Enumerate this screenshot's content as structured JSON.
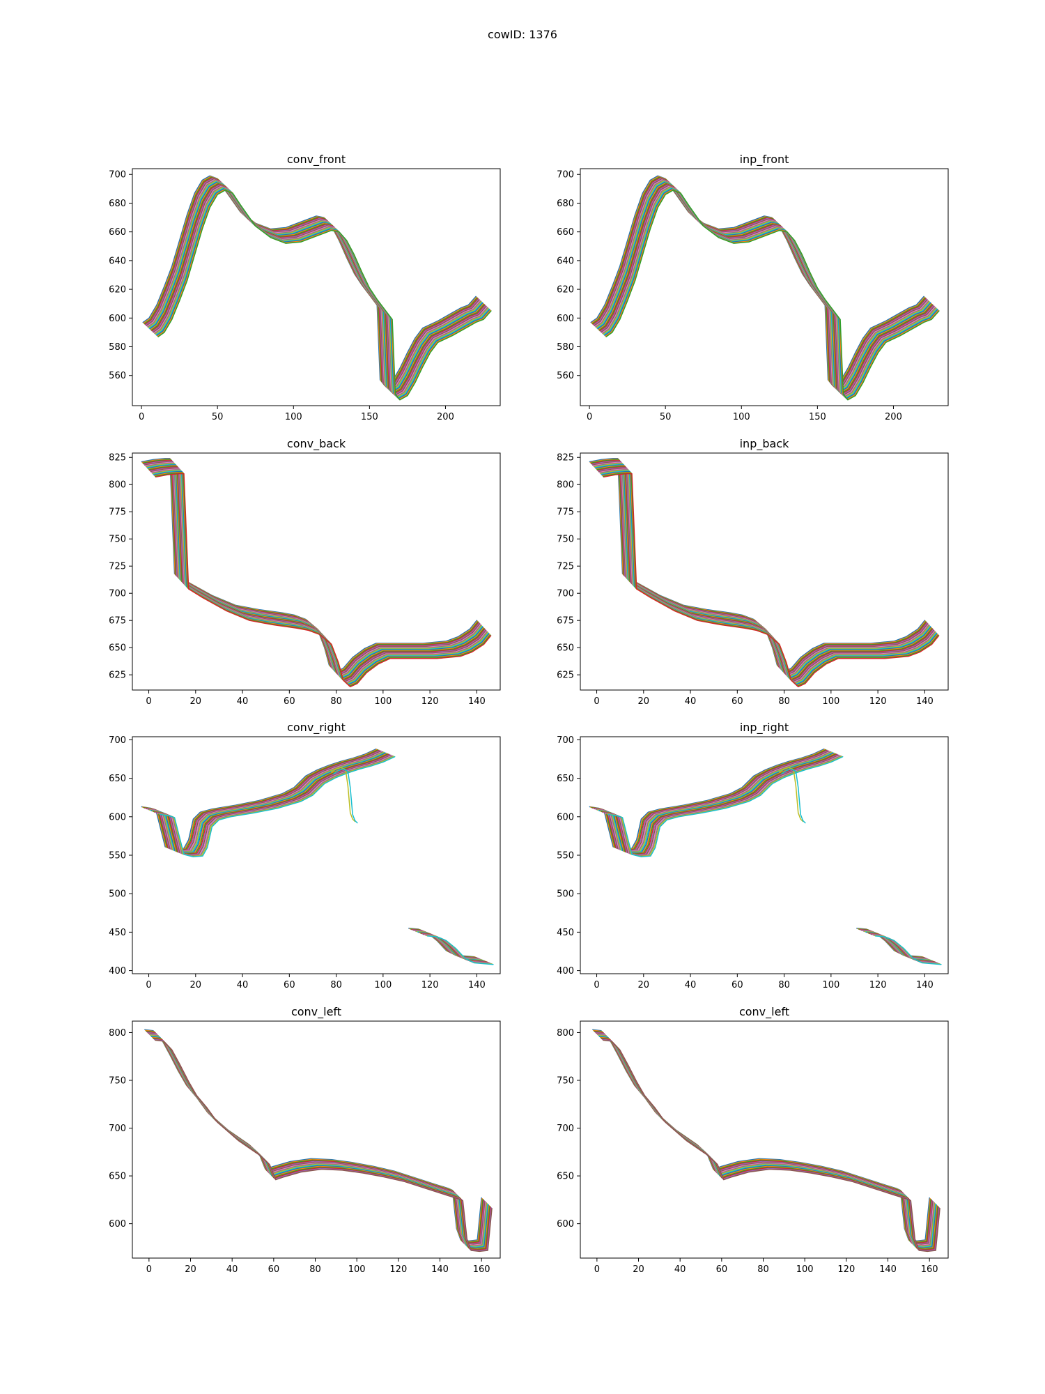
{
  "figure": {
    "title": "cowID: 1376"
  },
  "palette": [
    "#1f77b4",
    "#ff7f0e",
    "#2ca02c",
    "#d62728",
    "#9467bd",
    "#8c564b",
    "#e377c2",
    "#7f7f7f",
    "#bcbd22",
    "#17becf"
  ],
  "chart_data": [
    {
      "type": "line",
      "title": "conv_front",
      "xlabel": "",
      "ylabel": "",
      "xlim": [
        -6,
        236
      ],
      "ylim": [
        539,
        704
      ],
      "xticks": [
        0,
        50,
        100,
        150,
        200
      ],
      "yticks": [
        560,
        580,
        600,
        620,
        640,
        660,
        680,
        700
      ],
      "grid": false,
      "legend": "none",
      "series_count": 23,
      "base_curve": {
        "x": [
          6,
          10,
          15,
          20,
          25,
          30,
          35,
          40,
          45,
          50,
          55,
          60,
          70,
          80,
          90,
          100,
          110,
          120,
          125,
          130,
          135,
          140,
          145,
          150,
          155,
          160,
          162,
          165,
          170,
          175,
          180,
          185,
          190,
          200,
          210,
          215,
          220,
          225
        ],
        "y": [
          593,
          596,
          605,
          618,
          632,
          650,
          668,
          683,
          692,
          695,
          693,
          685,
          670,
          662,
          658,
          659,
          663,
          667,
          666,
          660,
          650,
          638,
          627,
          619,
          612,
          605,
          553,
          549,
          552,
          561,
          572,
          582,
          589,
          594,
          600,
          603,
          605,
          611
        ]
      },
      "shift_x": [
        -5,
        5
      ],
      "shift_y": [
        -6,
        4
      ]
    },
    {
      "type": "line",
      "title": "inp_front",
      "xlabel": "",
      "ylabel": "",
      "xlim": [
        -6,
        236
      ],
      "ylim": [
        539,
        704
      ],
      "xticks": [
        0,
        50,
        100,
        150,
        200
      ],
      "yticks": [
        560,
        580,
        600,
        620,
        640,
        660,
        680,
        700
      ],
      "grid": false,
      "legend": "none",
      "series_count": 23,
      "base_curve": {
        "x": [
          6,
          10,
          15,
          20,
          25,
          30,
          35,
          40,
          45,
          50,
          55,
          60,
          70,
          80,
          90,
          100,
          110,
          120,
          125,
          130,
          135,
          140,
          145,
          150,
          155,
          160,
          162,
          165,
          170,
          175,
          180,
          185,
          190,
          200,
          210,
          215,
          220,
          225
        ],
        "y": [
          593,
          596,
          605,
          618,
          632,
          650,
          668,
          683,
          692,
          695,
          693,
          685,
          670,
          662,
          658,
          659,
          663,
          667,
          666,
          660,
          650,
          638,
          627,
          619,
          612,
          605,
          553,
          549,
          552,
          561,
          572,
          582,
          589,
          594,
          600,
          603,
          605,
          611
        ]
      },
      "shift_x": [
        -5,
        5
      ],
      "shift_y": [
        -6,
        4
      ]
    },
    {
      "type": "line",
      "title": "conv_back",
      "xlabel": "",
      "ylabel": "",
      "xlim": [
        -7,
        150
      ],
      "ylim": [
        611,
        829
      ],
      "xticks": [
        0,
        20,
        40,
        60,
        80,
        100,
        120,
        140
      ],
      "yticks": [
        625,
        650,
        675,
        700,
        725,
        750,
        775,
        800,
        825
      ],
      "grid": false,
      "legend": "none",
      "series_count": 24,
      "base_curve": {
        "x": [
          0,
          5,
          10,
          12,
          14,
          20,
          30,
          40,
          50,
          60,
          65,
          70,
          75,
          78,
          80,
          83,
          86,
          90,
          95,
          100,
          110,
          120,
          130,
          135,
          140,
          143
        ],
        "y": [
          815,
          817,
          818,
          818,
          712,
          704,
          692,
          683,
          679,
          676,
          674,
          670,
          661,
          644,
          628,
          622,
          625,
          635,
          643,
          648,
          648,
          648,
          650,
          654,
          661,
          669
        ]
      },
      "shift_x": [
        -3,
        3
      ],
      "shift_y": [
        -8,
        6
      ]
    },
    {
      "type": "line",
      "title": "inp_back",
      "xlabel": "",
      "ylabel": "",
      "xlim": [
        -7,
        150
      ],
      "ylim": [
        611,
        829
      ],
      "xticks": [
        0,
        20,
        40,
        60,
        80,
        100,
        120,
        140
      ],
      "yticks": [
        625,
        650,
        675,
        700,
        725,
        750,
        775,
        800,
        825
      ],
      "grid": false,
      "legend": "none",
      "series_count": 24,
      "base_curve": {
        "x": [
          0,
          5,
          10,
          12,
          14,
          20,
          30,
          40,
          50,
          60,
          65,
          70,
          75,
          78,
          80,
          83,
          86,
          90,
          95,
          100,
          110,
          120,
          130,
          135,
          140,
          143
        ],
        "y": [
          815,
          817,
          818,
          818,
          712,
          704,
          692,
          683,
          679,
          676,
          674,
          670,
          661,
          644,
          628,
          622,
          625,
          635,
          643,
          648,
          648,
          648,
          650,
          654,
          661,
          669
        ]
      },
      "shift_x": [
        -3,
        3
      ],
      "shift_y": [
        -8,
        6
      ]
    },
    {
      "type": "line",
      "title": "conv_right",
      "xlabel": "",
      "ylabel": "",
      "xlim": [
        -7,
        150
      ],
      "ylim": [
        396,
        704
      ],
      "xticks": [
        0,
        20,
        40,
        60,
        80,
        100,
        120,
        140
      ],
      "yticks": [
        400,
        450,
        500,
        550,
        600,
        650,
        700
      ],
      "grid": false,
      "legend": "none",
      "series_count": 20,
      "base_curve": {
        "x": [
          0,
          4,
          6,
          8,
          10,
          14,
          18,
          20,
          22,
          25,
          30,
          40,
          50,
          60,
          65,
          70,
          75,
          80,
          85,
          90,
          95,
          100
        ],
        "y": [
          608,
          606,
          604,
          580,
          556,
          553,
          554,
          565,
          592,
          601,
          605,
          610,
          616,
          625,
          633,
          648,
          656,
          662,
          667,
          671,
          676,
          683
        ]
      },
      "secondary_curve": {
        "x": [
          114,
          118,
          122,
          126,
          130,
          134,
          138,
          142
        ],
        "y": [
          450,
          449,
          444,
          434,
          421,
          415,
          414,
          413
        ]
      },
      "outlier_curve": {
        "x": [
          78,
          80,
          82,
          84,
          85,
          86,
          87,
          88
        ],
        "y": [
          658,
          662,
          664,
          661,
          640,
          605,
          597,
          594
        ]
      },
      "shift_x": [
        -3,
        5
      ],
      "shift_y": [
        -5,
        5
      ]
    },
    {
      "type": "line",
      "title": "inp_right",
      "xlabel": "",
      "ylabel": "",
      "xlim": [
        -7,
        150
      ],
      "ylim": [
        396,
        704
      ],
      "xticks": [
        0,
        20,
        40,
        60,
        80,
        100,
        120,
        140
      ],
      "yticks": [
        400,
        450,
        500,
        550,
        600,
        650,
        700
      ],
      "grid": false,
      "legend": "none",
      "series_count": 20,
      "base_curve": {
        "x": [
          0,
          4,
          6,
          8,
          10,
          14,
          18,
          20,
          22,
          25,
          30,
          40,
          50,
          60,
          65,
          70,
          75,
          80,
          85,
          90,
          95,
          100
        ],
        "y": [
          608,
          606,
          604,
          580,
          556,
          553,
          554,
          565,
          592,
          601,
          605,
          610,
          616,
          625,
          633,
          648,
          656,
          662,
          667,
          671,
          676,
          683
        ]
      },
      "secondary_curve": {
        "x": [
          114,
          118,
          122,
          126,
          130,
          134,
          138,
          142
        ],
        "y": [
          450,
          449,
          444,
          434,
          421,
          415,
          414,
          413
        ]
      },
      "outlier_curve": {
        "x": [
          78,
          80,
          82,
          84,
          85,
          86,
          87,
          88
        ],
        "y": [
          658,
          662,
          664,
          661,
          640,
          605,
          597,
          594
        ]
      },
      "shift_x": [
        -3,
        5
      ],
      "shift_y": [
        -5,
        5
      ]
    },
    {
      "type": "line",
      "title": "conv_left",
      "xlabel": "",
      "ylabel": "",
      "xlim": [
        -8,
        169
      ],
      "ylim": [
        564,
        812
      ],
      "xticks": [
        0,
        20,
        40,
        60,
        80,
        100,
        120,
        140,
        160
      ],
      "yticks": [
        600,
        650,
        700,
        750,
        800
      ],
      "grid": false,
      "legend": "none",
      "series_count": 16,
      "base_curve": {
        "x": [
          0,
          4,
          8,
          12,
          16,
          20,
          25,
          30,
          40,
          50,
          55,
          58,
          62,
          70,
          80,
          90,
          100,
          110,
          120,
          130,
          140,
          146,
          148,
          150,
          152,
          156,
          160,
          162
        ],
        "y": [
          798,
          797,
          788,
          772,
          755,
          740,
          727,
          712,
          693,
          678,
          668,
          652,
          655,
          660,
          663,
          662,
          659,
          655,
          650,
          643,
          636,
          632,
          630,
          590,
          578,
          577,
          578,
          622
        ]
      },
      "shift_x": [
        -2,
        3
      ],
      "shift_y": [
        -6,
        5
      ]
    },
    {
      "type": "line",
      "title": "conv_left",
      "xlabel": "",
      "ylabel": "",
      "xlim": [
        -8,
        169
      ],
      "ylim": [
        564,
        812
      ],
      "xticks": [
        0,
        20,
        40,
        60,
        80,
        100,
        120,
        140,
        160
      ],
      "yticks": [
        600,
        650,
        700,
        750,
        800
      ],
      "grid": false,
      "legend": "none",
      "series_count": 16,
      "base_curve": {
        "x": [
          0,
          4,
          8,
          12,
          16,
          20,
          25,
          30,
          40,
          50,
          55,
          58,
          62,
          70,
          80,
          90,
          100,
          110,
          120,
          130,
          140,
          146,
          148,
          150,
          152,
          156,
          160,
          162
        ],
        "y": [
          798,
          797,
          788,
          772,
          755,
          740,
          727,
          712,
          693,
          678,
          668,
          652,
          655,
          660,
          663,
          662,
          659,
          655,
          650,
          643,
          636,
          632,
          630,
          590,
          578,
          577,
          578,
          622
        ]
      },
      "shift_x": [
        -2,
        3
      ],
      "shift_y": [
        -6,
        5
      ]
    }
  ]
}
